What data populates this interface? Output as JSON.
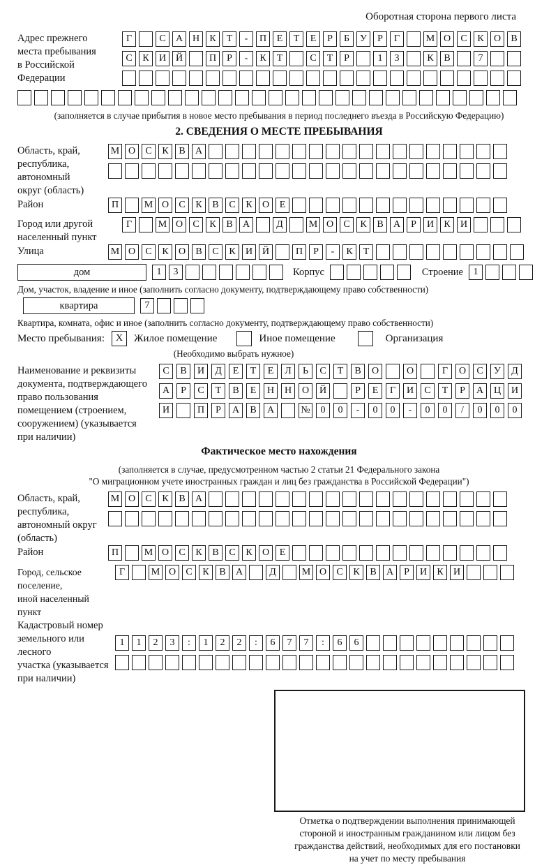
{
  "page": {
    "top_note": "Оборотная сторона первого листа"
  },
  "prev_address": {
    "label_lines": [
      "Адрес прежнего",
      "места пребывания",
      "в Российской",
      "Федерации"
    ],
    "rows": [
      {
        "text": "Г САНКТ-ПЕТЕРБУРГ МОСКОВ",
        "len": 24
      },
      {
        "text": "СКИЙ ПР-КТ СТР 13 КВ 7",
        "len": 24
      },
      {
        "text": "",
        "len": 24
      }
    ],
    "full_row": {
      "text": "",
      "len": 30
    },
    "note": "(заполняется в случае прибытия в новое место пребывания в период последнего въезда в Российскую Федерацию)"
  },
  "section2": {
    "title": "2. СВЕДЕНИЯ О МЕСТЕ ПРЕБЫВАНИЯ",
    "region": {
      "label_lines": [
        "Область, край,",
        "республика,",
        "автономный",
        "округ (область)"
      ],
      "rows": [
        {
          "text": "МОСКВА",
          "len": 24
        },
        {
          "text": "",
          "len": 24
        }
      ]
    },
    "district": {
      "label": "Район",
      "row": {
        "text": "П МОСКВСКОЕ",
        "len": 24
      }
    },
    "city": {
      "label_lines": [
        "Город или другой",
        "населенный пункт"
      ],
      "row": {
        "text": "Г МОСКВА Д МОСКВАРИКИ",
        "len": 24
      }
    },
    "street": {
      "label": "Улица",
      "row": {
        "text": "МОСКОВСКИЙ ПР-КТ",
        "len": 25
      }
    },
    "house": {
      "box_label": "дом",
      "house_row": {
        "text": "13",
        "len": 8
      },
      "korpus_label": "Корпус",
      "korpus_row": {
        "text": "",
        "len": 5
      },
      "stroenie_label": "Строение",
      "stroenie_row": {
        "text": "1",
        "len": 4
      },
      "note": "Дом, участок, владение и иное (заполнить согласно документу, подтверждающему право собственности)"
    },
    "apartment": {
      "box_label": "квартира",
      "row": {
        "text": "7",
        "len": 4
      },
      "note": "Квартира, комната, офис и иное (заполнить согласно документу, подтверждающему право собственности)"
    },
    "stay_type": {
      "label": "Место пребывания:",
      "options": [
        {
          "label": "Жилое помещение",
          "checked": "X"
        },
        {
          "label": "Иное помещение",
          "checked": ""
        },
        {
          "label": "Организация",
          "checked": ""
        }
      ],
      "note": "(Необходимо выбрать нужное)"
    },
    "document": {
      "label_lines": [
        "Наименование и реквизиты",
        "документа, подтверждающего",
        "право пользования",
        "помещением (строением,",
        "сооружением) (указывается",
        "при наличии)"
      ],
      "rows": [
        {
          "text": "СВИДЕТЕЛЬСТВО О ГОСУД",
          "len": 21
        },
        {
          "text": "АРСТВЕННОЙ РЕГИСТРАЦИ",
          "len": 21
        },
        {
          "text": "И ПРАВА №00-00-00/000",
          "len": 21
        }
      ]
    }
  },
  "actual_location": {
    "title": "Фактическое место нахождения",
    "note_lines": [
      "(заполняется в случае, предусмотренном частью 2 статьи 21 Федерального закона",
      "\"О миграционном учете иностранных граждан и лиц без гражданства в Российской Федерации\")"
    ],
    "region": {
      "label_lines": [
        "Область, край,",
        "республика,",
        "автономный округ",
        "(область)"
      ],
      "rows": [
        {
          "text": "МОСКВА",
          "len": 24
        },
        {
          "text": "",
          "len": 24
        }
      ]
    },
    "district": {
      "label": "Район",
      "row": {
        "text": "П МОСКВСКОЕ",
        "len": 24
      }
    },
    "city": {
      "label_lines": [
        "Город, сельское поселение,",
        "иной населенный пункт"
      ],
      "row": {
        "text": "Г МОСКВА Д МОСКВАРИКИ",
        "len": 24
      }
    },
    "cadastral": {
      "label_lines": [
        "Кадастровый номер",
        "земельного или лесного",
        "участка (указывается",
        "при наличии)"
      ],
      "rows": [
        {
          "text": "1123:122:677:66",
          "len": 24
        },
        {
          "text": "",
          "len": 24
        }
      ]
    },
    "stamp": {
      "caption_lines": [
        "Отметка о подтверждении выполнения принимающей",
        "стороной и иностранным гражданином или лицом без",
        "гражданства действий, необходимых для его постановки",
        "на учет по месту пребывания"
      ]
    }
  }
}
